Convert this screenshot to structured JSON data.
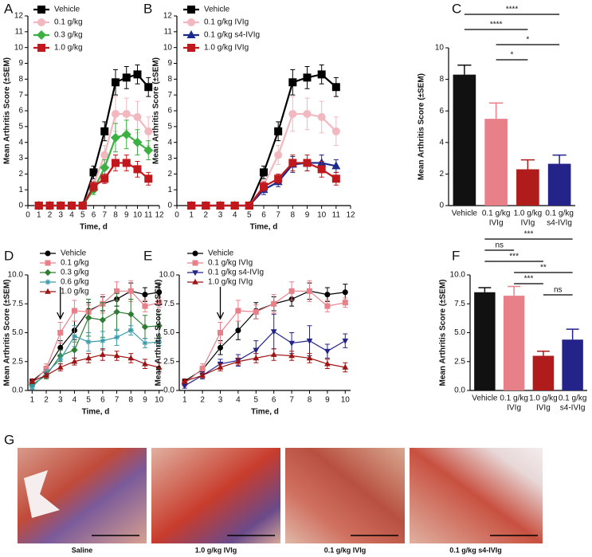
{
  "chart_data": [
    {
      "panel": "A",
      "type": "line",
      "ylabel": "Mean Arthritis Score (±SEM)",
      "xlabel": "Time, d",
      "x": [
        1,
        2,
        3,
        4,
        5,
        6,
        7,
        8,
        9,
        10,
        11
      ],
      "xlim": [
        0,
        12
      ],
      "xticks": [
        0,
        1,
        2,
        3,
        4,
        5,
        6,
        7,
        8,
        9,
        10,
        11,
        12
      ],
      "ylim": [
        0,
        12
      ],
      "yticks": [
        0,
        1,
        2,
        3,
        4,
        5,
        6,
        7,
        8,
        9,
        10,
        11,
        12
      ],
      "legend": "upper left",
      "series": [
        {
          "name": "Vehicle",
          "color": "#000000",
          "marker": "square",
          "values": [
            0,
            0,
            0,
            0,
            0,
            2.1,
            4.7,
            7.8,
            8.1,
            8.3,
            7.5
          ],
          "errors": [
            0,
            0,
            0,
            0,
            0,
            0.4,
            0.6,
            0.8,
            0.7,
            0.6,
            0.6
          ]
        },
        {
          "name": "0.1 g/kg",
          "color": "#f2b8c0",
          "marker": "circle",
          "values": [
            0,
            0,
            0,
            0,
            0,
            1.3,
            3.2,
            5.8,
            5.8,
            5.6,
            4.7
          ],
          "errors": [
            0,
            0,
            0,
            0,
            0,
            0.3,
            0.6,
            1.1,
            1.0,
            1.0,
            0.9
          ]
        },
        {
          "name": "0.3 g/kg",
          "color": "#3cb043",
          "marker": "diamond",
          "values": [
            0,
            0,
            0,
            0,
            0,
            1.0,
            2.4,
            4.3,
            4.5,
            4.0,
            3.5
          ],
          "errors": [
            0,
            0,
            0,
            0,
            0,
            0.3,
            0.5,
            0.9,
            0.9,
            0.8,
            0.6
          ]
        },
        {
          "name": "1.0 g/kg",
          "color": "#c0181c",
          "marker": "square",
          "values": [
            0,
            0,
            0,
            0,
            0,
            1.2,
            1.7,
            2.7,
            2.7,
            2.3,
            1.7
          ],
          "errors": [
            0,
            0,
            0,
            0,
            0,
            0.3,
            0.3,
            0.5,
            0.5,
            0.5,
            0.4
          ]
        }
      ]
    },
    {
      "panel": "B",
      "type": "line",
      "ylabel": "Mean Arthritis Score (±SEM)",
      "xlabel": "Time, d",
      "x": [
        1,
        2,
        3,
        4,
        5,
        6,
        7,
        8,
        9,
        10,
        11
      ],
      "xlim": [
        0,
        12
      ],
      "xticks": [
        0,
        1,
        2,
        3,
        4,
        5,
        6,
        7,
        8,
        9,
        10,
        11,
        12
      ],
      "ylim": [
        0,
        12
      ],
      "yticks": [
        0,
        1,
        2,
        3,
        4,
        5,
        6,
        7,
        8,
        9,
        10,
        11,
        12
      ],
      "legend": "upper left",
      "series": [
        {
          "name": "Vehicle",
          "color": "#000000",
          "marker": "square",
          "values": [
            0,
            0,
            0,
            0,
            0,
            2.1,
            4.7,
            7.8,
            8.1,
            8.3,
            7.5
          ],
          "errors": [
            0,
            0,
            0,
            0,
            0,
            0.4,
            0.6,
            0.8,
            0.7,
            0.6,
            0.6
          ]
        },
        {
          "name": "0.1 g/kg IVIg",
          "color": "#f2b8c0",
          "marker": "circle",
          "values": [
            0,
            0,
            0,
            0,
            0,
            1.3,
            3.2,
            5.8,
            5.8,
            5.6,
            4.7
          ],
          "errors": [
            0,
            0,
            0,
            0,
            0,
            0.3,
            0.6,
            1.1,
            1.0,
            1.0,
            0.9
          ]
        },
        {
          "name": "0.1 g/kg s4-IVIg",
          "color": "#1c2a8c",
          "marker": "triangle",
          "values": [
            0,
            0,
            0,
            0,
            0,
            1.0,
            1.5,
            2.6,
            2.7,
            2.7,
            2.5
          ],
          "errors": [
            0,
            0,
            0,
            0,
            0,
            0.3,
            0.3,
            0.5,
            0.5,
            0.5,
            0.4
          ]
        },
        {
          "name": "1.0 g/kg IVIg",
          "color": "#c0181c",
          "marker": "square",
          "values": [
            0,
            0,
            0,
            0,
            0,
            1.2,
            1.7,
            2.7,
            2.7,
            2.3,
            1.7
          ],
          "errors": [
            0,
            0,
            0,
            0,
            0,
            0.3,
            0.3,
            0.5,
            0.5,
            0.5,
            0.4
          ]
        }
      ]
    },
    {
      "panel": "C",
      "type": "bar",
      "ylabel": "Mean Arthritis Score (±SEM)",
      "categories": [
        [
          "Vehicle"
        ],
        [
          "0.1 g/kg",
          "IVIg"
        ],
        [
          "1.0 g/kg",
          "IVIg"
        ],
        [
          "0.1 g/kg",
          "s4-IVIg"
        ]
      ],
      "values": [
        8.3,
        5.5,
        2.3,
        2.65
      ],
      "errors": [
        0.6,
        1.0,
        0.6,
        0.55
      ],
      "colors": [
        "#111111",
        "#e8808a",
        "#b01c1c",
        "#23238a"
      ],
      "ylim": [
        0,
        10
      ],
      "yticks": [
        0,
        2,
        4,
        6,
        8,
        10
      ],
      "brackets": [
        {
          "between": [
            0,
            3
          ],
          "label": "****"
        },
        {
          "between": [
            0,
            2
          ],
          "label": "****"
        },
        {
          "between": [
            1,
            3
          ],
          "label": "*"
        },
        {
          "between": [
            1,
            2
          ],
          "label": "*"
        }
      ]
    },
    {
      "panel": "D",
      "type": "line",
      "ylabel": "Mean Arthritis Score (±SEM)",
      "xlabel": "Time, d",
      "x": [
        1,
        2,
        3,
        4,
        5,
        6,
        7,
        8,
        9,
        10
      ],
      "xlim": [
        0.7,
        10.3
      ],
      "xticks": [
        1,
        2,
        3,
        4,
        5,
        6,
        7,
        8,
        9,
        10
      ],
      "ylim": [
        0,
        10
      ],
      "yticks": [
        {
          "value": 0,
          "label": "0.0"
        },
        {
          "value": 2.5,
          "label": "2.5"
        },
        {
          "value": 5,
          "label": "5.0"
        },
        {
          "value": 7.5,
          "label": "7.5"
        },
        {
          "value": 10,
          "label": "10.0"
        }
      ],
      "legend": "upper left",
      "arrow_x": 3,
      "series": [
        {
          "name": "Vehicle",
          "color": "#000000",
          "marker": "circle",
          "values": [
            0.8,
            1.8,
            3.7,
            5.2,
            6.9,
            7.5,
            7.9,
            8.6,
            8.3,
            8.5
          ],
          "errors": [
            0.2,
            0.3,
            0.6,
            0.8,
            0.7,
            0.6,
            0.6,
            0.7,
            0.6,
            0.7
          ]
        },
        {
          "name": "0.1 g/kg",
          "color": "#e8808a",
          "marker": "square",
          "values": [
            0.6,
            1.9,
            5.0,
            6.9,
            6.8,
            7.5,
            8.6,
            8.6,
            7.3,
            7.6
          ],
          "errors": [
            0.2,
            0.4,
            0.9,
            0.9,
            0.6,
            0.8,
            0.8,
            0.9,
            0.5,
            0.4
          ]
        },
        {
          "name": "0.3 g/kg",
          "color": "#2e7d32",
          "marker": "diamond",
          "values": [
            0.5,
            1.3,
            3.0,
            3.5,
            6.3,
            6.1,
            6.8,
            6.6,
            5.5,
            5.6
          ],
          "errors": [
            0.2,
            0.3,
            0.5,
            0.7,
            1.6,
            1.5,
            1.6,
            1.3,
            1.0,
            1.0
          ]
        },
        {
          "name": "0.6 g/kg",
          "color": "#3a9aa8",
          "marker": "asterisk",
          "values": [
            0.3,
            1.5,
            2.7,
            4.7,
            4.2,
            4.3,
            4.6,
            5.2,
            4.1,
            4.2
          ],
          "errors": [
            0.2,
            0.3,
            0.4,
            0.9,
            0.8,
            0.8,
            0.7,
            0.4,
            0.4,
            0.3
          ]
        },
        {
          "name": "1.0 g/kg",
          "color": "#9c1414",
          "marker": "triangle",
          "values": [
            0.8,
            1.3,
            2.0,
            2.5,
            2.8,
            3.1,
            3.0,
            2.8,
            2.3,
            2.0
          ],
          "errors": [
            0.2,
            0.2,
            0.3,
            0.3,
            0.4,
            0.5,
            0.4,
            0.4,
            0.4,
            0.4
          ]
        }
      ]
    },
    {
      "panel": "E",
      "type": "line",
      "ylabel": "Mean Arthritis Score (±SEM)",
      "xlabel": "Time, d",
      "x": [
        1,
        2,
        3,
        4,
        5,
        6,
        7,
        8,
        9,
        10
      ],
      "xlim": [
        0.7,
        10.3
      ],
      "xticks": [
        1,
        2,
        3,
        4,
        5,
        6,
        7,
        8,
        9,
        10
      ],
      "ylim": [
        0,
        10
      ],
      "yticks": [
        {
          "value": 0,
          "label": "0.0"
        },
        {
          "value": 2.5,
          "label": "2.5"
        },
        {
          "value": 5,
          "label": "5.0"
        },
        {
          "value": 7.5,
          "label": "7.5"
        },
        {
          "value": 10,
          "label": "10.0"
        }
      ],
      "legend": "upper left",
      "arrow_x": 3,
      "series": [
        {
          "name": "Vehicle",
          "color": "#000000",
          "marker": "circle",
          "values": [
            0.8,
            1.8,
            3.7,
            5.2,
            6.9,
            7.5,
            7.9,
            8.6,
            8.3,
            8.5
          ],
          "errors": [
            0.2,
            0.3,
            0.6,
            0.8,
            0.7,
            0.6,
            0.6,
            0.7,
            0.6,
            0.7
          ]
        },
        {
          "name": "0.1 g/kg IVIg",
          "color": "#e8808a",
          "marker": "square",
          "values": [
            0.6,
            1.9,
            5.0,
            6.9,
            6.8,
            7.5,
            8.6,
            8.6,
            7.3,
            7.6
          ],
          "errors": [
            0.2,
            0.4,
            0.9,
            0.9,
            0.6,
            0.8,
            0.8,
            0.9,
            0.5,
            0.4
          ]
        },
        {
          "name": "0.1 g/kg s4-IVIg",
          "color": "#23238a",
          "marker": "triangle-down",
          "values": [
            0.4,
            1.3,
            2.3,
            2.6,
            3.5,
            5.1,
            4.1,
            4.3,
            3.4,
            4.3
          ],
          "errors": [
            0.2,
            0.3,
            0.4,
            0.5,
            0.8,
            1.5,
            0.9,
            1.3,
            0.6,
            0.6
          ]
        },
        {
          "name": "1.0 g/kg IVIg",
          "color": "#9c1414",
          "marker": "triangle",
          "values": [
            0.8,
            1.3,
            2.0,
            2.5,
            2.8,
            3.1,
            3.0,
            2.8,
            2.3,
            2.0
          ],
          "errors": [
            0.2,
            0.2,
            0.3,
            0.3,
            0.4,
            0.5,
            0.4,
            0.4,
            0.4,
            0.4
          ]
        }
      ]
    },
    {
      "panel": "F",
      "type": "bar",
      "ylabel": "Mean Arthritis Score (±SEM)",
      "categories": [
        [
          "Vehicle"
        ],
        [
          "0.1 g/kg",
          "IVIg"
        ],
        [
          "1.0 g/kg",
          "IVIg"
        ],
        [
          "0.1 g/kg",
          "s4-IVIg"
        ]
      ],
      "values": [
        8.5,
        8.2,
        3.0,
        4.4
      ],
      "errors": [
        0.4,
        0.8,
        0.4,
        0.9
      ],
      "colors": [
        "#111111",
        "#e8808a",
        "#b01c1c",
        "#23238a"
      ],
      "ylim": [
        0,
        10
      ],
      "yticks": [
        {
          "value": 0,
          "label": "0.0"
        },
        {
          "value": 2.5,
          "label": "2.5"
        },
        {
          "value": 5,
          "label": "5.0"
        },
        {
          "value": 7.5,
          "label": "7.5"
        },
        {
          "value": 10,
          "label": "10.0"
        }
      ],
      "brackets": [
        {
          "between": [
            0,
            3
          ],
          "label": "***"
        },
        {
          "between": [
            0,
            1
          ],
          "label": "ns"
        },
        {
          "between": [
            0,
            2
          ],
          "label": "***"
        },
        {
          "between": [
            1,
            3
          ],
          "label": "**"
        },
        {
          "between": [
            1,
            2
          ],
          "label": "***"
        },
        {
          "between": [
            2,
            3
          ],
          "label": "ns"
        }
      ]
    }
  ],
  "images": {
    "panel": "G",
    "captions": [
      "Saline",
      "1.0 g/kg IVIg",
      "0.1 g/kg IVIg",
      "0.1 g/kg s4-IVIg"
    ]
  }
}
